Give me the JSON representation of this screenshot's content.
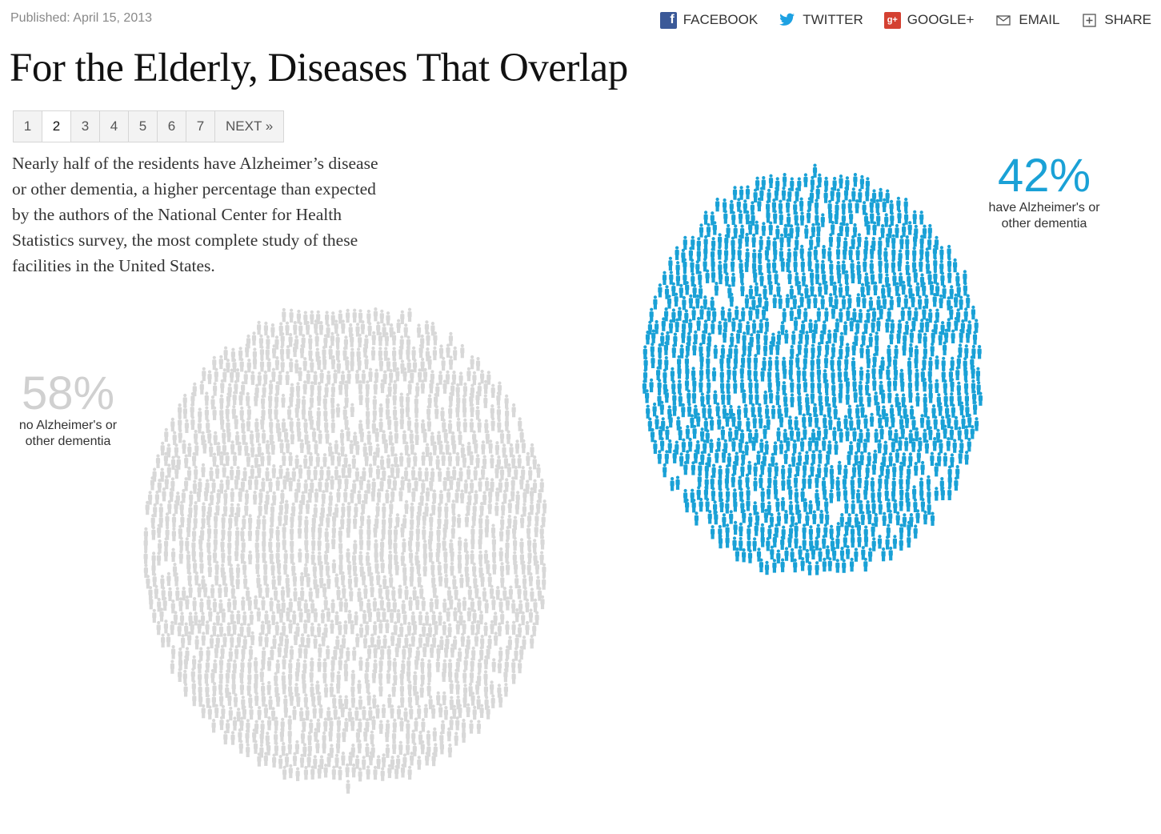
{
  "published": "Published: April 15, 2013",
  "share": {
    "facebook": "FACEBOOK",
    "twitter": "TWITTER",
    "googleplus": "GOOGLE+",
    "email": "EMAIL",
    "share": "SHARE"
  },
  "headline": "For the Elderly, Diseases That Overlap",
  "pager": {
    "pages": [
      "1",
      "2",
      "3",
      "4",
      "5",
      "6",
      "7"
    ],
    "active": "2",
    "next": "NEXT »"
  },
  "intro": "Nearly half of the residents have Alzheimer’s disease or other dementia, a higher percentage than expected by the authors of the National Center for Health Statistics survey, the most complete study of these facilities in the United States.",
  "chart_data": {
    "type": "pictogram",
    "series": [
      {
        "name": "no Alzheimer's or other dementia",
        "percent": "58%",
        "value": 58,
        "color": "#d8d8d8"
      },
      {
        "name": "have Alzheimer's or other dementia",
        "percent": "42%",
        "value": 42,
        "color": "#1aa1d6"
      }
    ]
  },
  "stats": {
    "blue": {
      "percent": "42%",
      "label_line1": "have Alzheimer's or",
      "label_line2": "other dementia"
    },
    "gray": {
      "percent": "58%",
      "label_line1": "no Alzheimer's or",
      "label_line2": "other dementia"
    }
  }
}
